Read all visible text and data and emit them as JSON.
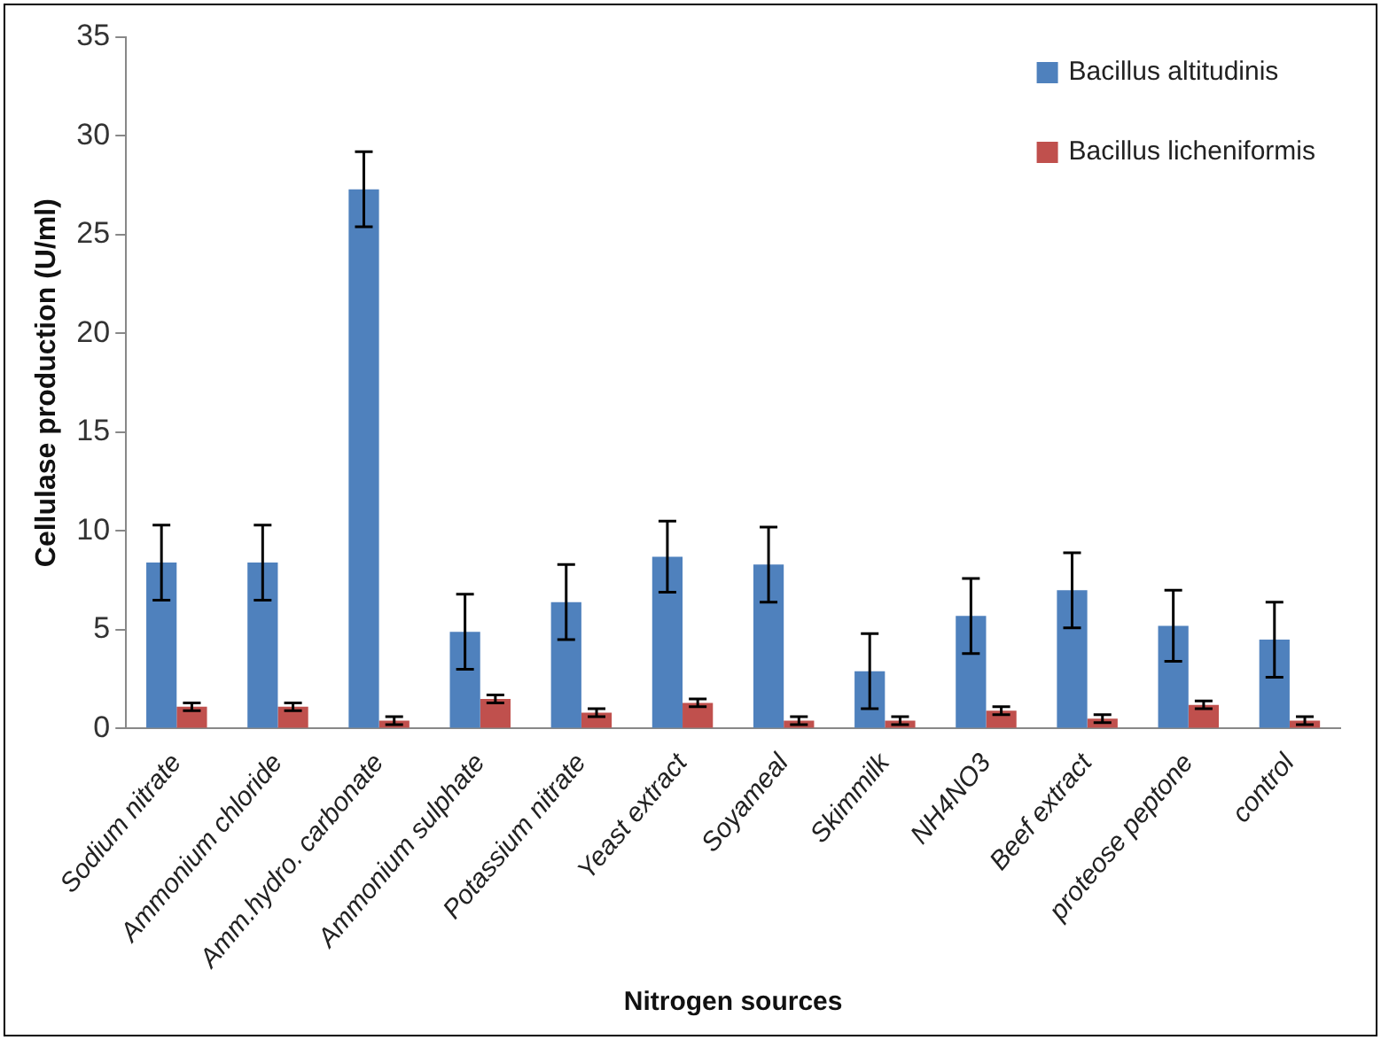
{
  "chart_data": {
    "type": "bar",
    "xlabel": "Nitrogen sources",
    "ylabel": "Cellulase production (U/ml)",
    "categories": [
      "Sodium nitrate",
      "Ammonium chloride",
      "Amm.hydro. carbonate",
      "Ammonium sulphate",
      "Potassium nitrate",
      "Yeast extract",
      "Soyameal",
      "Skimmilk",
      "NH4NO3",
      "Beef extract",
      "proteose peptone",
      "control"
    ],
    "series": [
      {
        "name": "Bacillus altitudinis",
        "color": "#4f81bd",
        "values": [
          8.4,
          8.4,
          27.3,
          4.9,
          6.4,
          8.7,
          8.3,
          2.9,
          5.7,
          7.0,
          5.2,
          4.5
        ],
        "errors": [
          1.9,
          1.9,
          1.9,
          1.9,
          1.9,
          1.8,
          1.9,
          1.9,
          1.9,
          1.9,
          1.8,
          1.9
        ]
      },
      {
        "name": "Bacillus licheniformis",
        "color": "#c0504d",
        "values": [
          1.1,
          1.1,
          0.4,
          1.5,
          0.8,
          1.3,
          0.4,
          0.4,
          0.9,
          0.5,
          1.2,
          0.4
        ],
        "errors": [
          0.2,
          0.2,
          0.2,
          0.2,
          0.2,
          0.2,
          0.2,
          0.2,
          0.2,
          0.2,
          0.2,
          0.2
        ]
      }
    ],
    "ylim": [
      0,
      35
    ],
    "yticks": [
      0,
      5,
      10,
      15,
      20,
      25,
      30,
      35
    ],
    "grid": false,
    "legend": "top right"
  }
}
